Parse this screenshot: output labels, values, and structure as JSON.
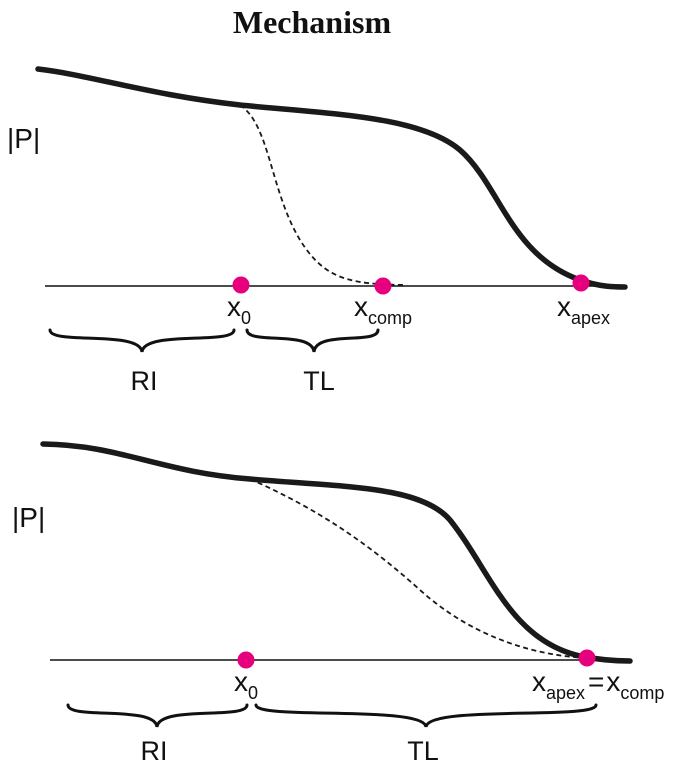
{
  "title": "Mechanism",
  "colors": {
    "marker": "#e6007e",
    "curve": "#1a1a1a",
    "axis": "#111111"
  },
  "top_panel": {
    "y_label": "|P|",
    "markers": [
      {
        "base": "x",
        "sub": "0"
      },
      {
        "base": "x",
        "sub": "comp"
      },
      {
        "base": "x",
        "sub": "apex"
      }
    ],
    "braces": [
      {
        "label": "RI"
      },
      {
        "label": "TL"
      }
    ]
  },
  "bottom_panel": {
    "y_label": "|P|",
    "markers": [
      {
        "base": "x",
        "sub": "0"
      },
      {
        "base": "x",
        "sub": "apex",
        "equals": "=",
        "base2": "x",
        "sub2": "comp"
      }
    ],
    "braces": [
      {
        "label": "RI"
      },
      {
        "label": "TL"
      }
    ]
  }
}
